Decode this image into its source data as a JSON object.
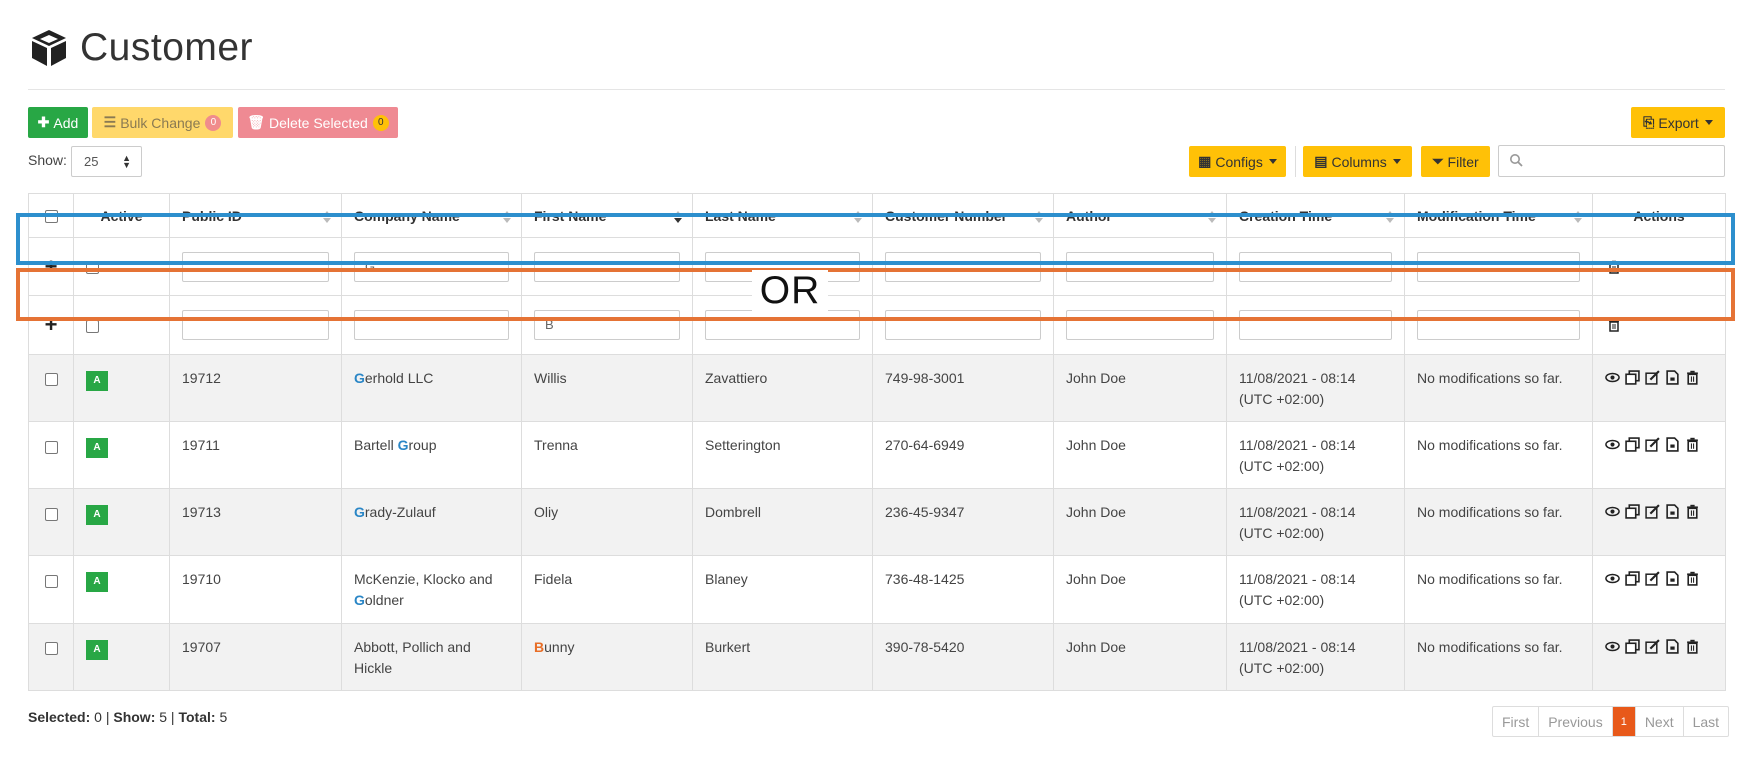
{
  "page": {
    "title": "Customer"
  },
  "toolbar": {
    "add_label": "Add",
    "bulk_label": "Bulk Change",
    "bulk_count": "0",
    "delete_label": "Delete Selected",
    "delete_count": "0",
    "export_label": "Export",
    "configs_label": "Configs",
    "columns_label": "Columns",
    "filter_label": "Filter",
    "show_label": "Show:",
    "show_value": "25",
    "search_placeholder": ""
  },
  "table": {
    "headers": [
      "Active",
      "Public ID",
      "Company Name",
      "First Name",
      "Last Name",
      "Customer Number",
      "Author",
      "Creation Time",
      "Modification Time",
      "Actions"
    ],
    "sorted_column": "First Name",
    "filter_rows": [
      {
        "plus": "+",
        "values": [
          "",
          "G",
          "",
          "",
          "",
          "",
          "",
          ""
        ]
      },
      {
        "plus": "+",
        "values": [
          "",
          "",
          "B",
          "",
          "",
          "",
          "",
          ""
        ]
      }
    ],
    "rows": [
      {
        "active": "A",
        "public_id": "19712",
        "company_pre": "",
        "company_hl": "G",
        "company_post": "erhold LLC",
        "first_hl": "",
        "first_post": "Willis",
        "last_name": "Zavattiero",
        "customer_number": "749-98-3001",
        "author": "John Doe",
        "created_1": "11/08/2021 - 08:14",
        "created_2": "(UTC +02:00)",
        "modified": "No modifications so far."
      },
      {
        "active": "A",
        "public_id": "19711",
        "company_pre": "Bartell ",
        "company_hl": "G",
        "company_post": "roup",
        "first_hl": "",
        "first_post": "Trenna",
        "last_name": "Setterington",
        "customer_number": "270-64-6949",
        "author": "John Doe",
        "created_1": "11/08/2021 - 08:14",
        "created_2": "(UTC +02:00)",
        "modified": "No modifications so far."
      },
      {
        "active": "A",
        "public_id": "19713",
        "company_pre": "",
        "company_hl": "G",
        "company_post": "rady-Zulauf",
        "first_hl": "",
        "first_post": "Oliy",
        "last_name": "Dombrell",
        "customer_number": "236-45-9347",
        "author": "John Doe",
        "created_1": "11/08/2021 - 08:14",
        "created_2": "(UTC +02:00)",
        "modified": "No modifications so far."
      },
      {
        "active": "A",
        "public_id": "19710",
        "company_pre": "McKenzie, Klocko and ",
        "company_hl": "G",
        "company_post": "oldner",
        "first_hl": "",
        "first_post": "Fidela",
        "last_name": "Blaney",
        "customer_number": "736-48-1425",
        "author": "John Doe",
        "created_1": "11/08/2021 - 08:14",
        "created_2": "(UTC +02:00)",
        "modified": "No modifications so far."
      },
      {
        "active": "A",
        "public_id": "19707",
        "company_pre": "Abbott, Pollich and Hickle",
        "company_hl": "",
        "company_post": "",
        "first_hl": "B",
        "first_post": "unny",
        "last_name": "Burkert",
        "customer_number": "390-78-5420",
        "author": "John Doe",
        "created_1": "11/08/2021 - 08:14",
        "created_2": "(UTC +02:00)",
        "modified": "No modifications so far."
      }
    ]
  },
  "annotation": {
    "or_label": "OR",
    "blue": "#2d8fcd",
    "orange": "#e57335"
  },
  "footer": {
    "selected_label": "Selected:",
    "selected_value": "0",
    "show_label": "Show:",
    "show_value": "5",
    "total_label": "Total:",
    "total_value": "5",
    "pager": [
      "First",
      "Previous",
      "1",
      "Next",
      "Last"
    ]
  },
  "colors": {
    "accent_green": "#28a745",
    "accent_yellow": "#ffc107",
    "danger": "#ef8a93",
    "active_page": "#e8591a"
  },
  "icons": [
    "cube-icon",
    "plus-icon",
    "list-check-icon",
    "trash-icon",
    "file-export-icon",
    "table-icon",
    "columns-icon",
    "filter-icon",
    "search-icon",
    "eye-icon",
    "copy-icon",
    "edit-icon",
    "file-pdf-icon"
  ]
}
